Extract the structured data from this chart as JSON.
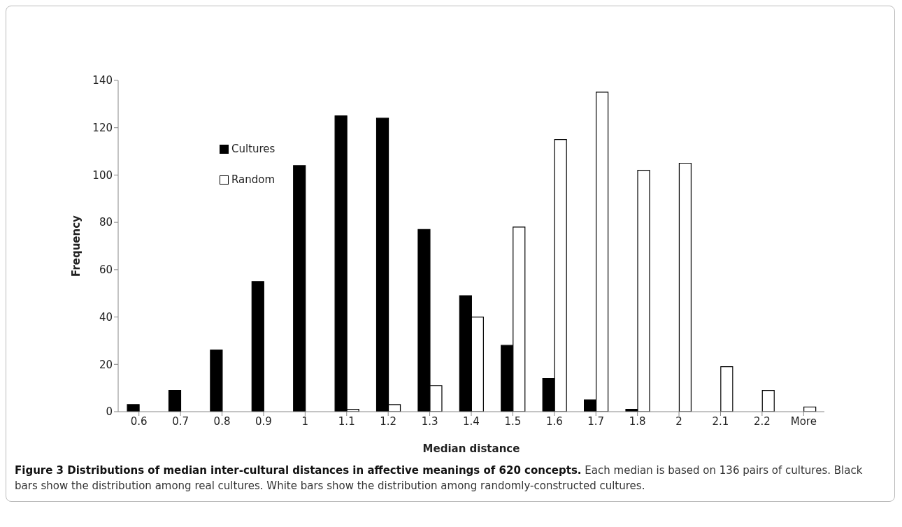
{
  "chart_data": {
    "type": "bar",
    "title": "Figure 3 Distributions of median inter-cultural distances in affective meanings of 620 concepts.",
    "annotations": [
      "Each median is based on 136 pairs of cultures. Black bars show the distribution among real cultures. White bars show the distribution among randomly-constructed cultures."
    ],
    "xlabel": "Median distance",
    "ylabel": "Frequency",
    "categories": [
      "0.6",
      "0.7",
      "0.8",
      "0.9",
      "1",
      "1.1",
      "1.2",
      "1.3",
      "1.4",
      "1.5",
      "1.6",
      "1.7",
      "1.8",
      "2",
      "2.1",
      "2.2",
      "More"
    ],
    "series": [
      {
        "name": "Cultures",
        "color": "#000000",
        "values": [
          3,
          9,
          26,
          55,
          104,
          125,
          124,
          77,
          49,
          28,
          14,
          5,
          1,
          0,
          0,
          0,
          0
        ]
      },
      {
        "name": "Random",
        "color": "#ffffff",
        "values": [
          0,
          0,
          0,
          0,
          0,
          1,
          3,
          11,
          40,
          78,
          115,
          135,
          102,
          105,
          19,
          9,
          2
        ]
      }
    ],
    "ylim": [
      0,
      140
    ],
    "yticks": [
      0,
      20,
      40,
      60,
      80,
      100,
      120,
      140
    ],
    "grid": false,
    "legend": "top left"
  }
}
